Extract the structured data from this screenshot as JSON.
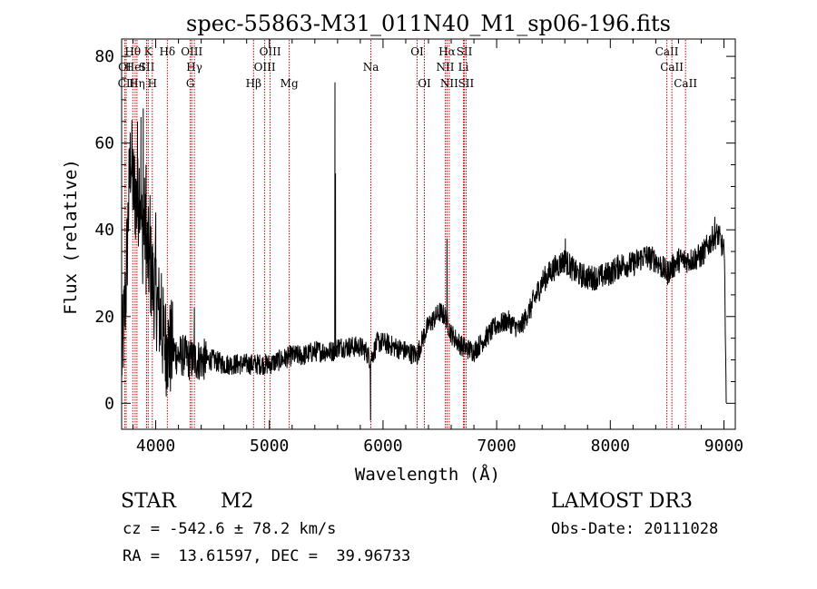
{
  "chart_data": {
    "type": "line",
    "title": "spec-55863-M31_011N40_M1_sp06-196.fits",
    "xlabel": "Wavelength (Å)",
    "ylabel": "Flux (relative)",
    "xlim": [
      3700,
      9100
    ],
    "ylim": [
      -6,
      84
    ],
    "xticks": [
      4000,
      5000,
      6000,
      7000,
      8000,
      9000
    ],
    "xtick_labels": [
      "4000",
      "5000",
      "6000",
      "7000",
      "8000",
      "9000"
    ],
    "yticks": [
      0,
      20,
      40,
      60,
      80
    ],
    "ytick_labels": [
      "0",
      "20",
      "40",
      "60",
      "80"
    ],
    "grid": false,
    "line_color": "#000000",
    "marker_color": "#cc0000",
    "anchors": [
      [
        3700,
        10
      ],
      [
        3720,
        18
      ],
      [
        3740,
        28
      ],
      [
        3760,
        45
      ],
      [
        3780,
        58
      ],
      [
        3800,
        50
      ],
      [
        3820,
        48
      ],
      [
        3840,
        45
      ],
      [
        3860,
        52
      ],
      [
        3880,
        38
      ],
      [
        3900,
        42
      ],
      [
        3920,
        35
      ],
      [
        3940,
        33
      ],
      [
        3960,
        30
      ],
      [
        3980,
        27
      ],
      [
        4000,
        25
      ],
      [
        4020,
        22
      ],
      [
        4040,
        20
      ],
      [
        4060,
        16
      ],
      [
        4080,
        14
      ],
      [
        4100,
        13
      ],
      [
        4150,
        12
      ],
      [
        4200,
        11
      ],
      [
        4250,
        11
      ],
      [
        4300,
        10
      ],
      [
        4350,
        10
      ],
      [
        4400,
        10
      ],
      [
        4500,
        10
      ],
      [
        4600,
        9
      ],
      [
        4700,
        9
      ],
      [
        4800,
        9
      ],
      [
        4900,
        9
      ],
      [
        5000,
        9
      ],
      [
        5100,
        10
      ],
      [
        5200,
        11
      ],
      [
        5300,
        11
      ],
      [
        5400,
        12
      ],
      [
        5500,
        12
      ],
      [
        5560,
        12
      ],
      [
        5600,
        13
      ],
      [
        5700,
        13
      ],
      [
        5800,
        13
      ],
      [
        5850,
        12
      ],
      [
        5890,
        10
      ],
      [
        5950,
        14
      ],
      [
        6000,
        14
      ],
      [
        6100,
        13
      ],
      [
        6200,
        12
      ],
      [
        6300,
        11
      ],
      [
        6350,
        15
      ],
      [
        6400,
        18
      ],
      [
        6500,
        21
      ],
      [
        6550,
        20
      ],
      [
        6600,
        16
      ],
      [
        6700,
        13
      ],
      [
        6800,
        12
      ],
      [
        6900,
        15
      ],
      [
        7000,
        18
      ],
      [
        7100,
        19
      ],
      [
        7200,
        17
      ],
      [
        7300,
        22
      ],
      [
        7400,
        28
      ],
      [
        7500,
        31
      ],
      [
        7600,
        33
      ],
      [
        7700,
        30
      ],
      [
        7800,
        29
      ],
      [
        7900,
        29
      ],
      [
        8000,
        30
      ],
      [
        8100,
        32
      ],
      [
        8200,
        32
      ],
      [
        8300,
        34
      ],
      [
        8400,
        33
      ],
      [
        8500,
        30
      ],
      [
        8600,
        33
      ],
      [
        8700,
        33
      ],
      [
        8800,
        34
      ],
      [
        8900,
        38
      ],
      [
        8950,
        39
      ],
      [
        9000,
        35
      ],
      [
        9010,
        25
      ],
      [
        9020,
        0
      ]
    ],
    "spikes": [
      [
        3840,
        65
      ],
      [
        3870,
        66
      ],
      [
        3890,
        68
      ],
      [
        3915,
        55
      ],
      [
        3950,
        48
      ],
      [
        4000,
        44
      ],
      [
        4050,
        30
      ],
      [
        4102,
        15
      ],
      [
        4340,
        22
      ],
      [
        5577,
        74
      ],
      [
        5582,
        53
      ],
      [
        5890,
        -4
      ],
      [
        6563,
        38
      ],
      [
        7605,
        38
      ],
      [
        8920,
        43
      ]
    ],
    "noise_amplitude": 2.5,
    "lines": [
      {
        "label": "OI",
        "x": 3727,
        "row": 1
      },
      {
        "label": "CII",
        "x": 3740,
        "row": 2
      },
      {
        "label": "Hθ",
        "x": 3798,
        "row": 0
      },
      {
        "label": "HeI",
        "x": 3819,
        "row": 1
      },
      {
        "label": "Hη",
        "x": 3835,
        "row": 2
      },
      {
        "label": "K",
        "x": 3934,
        "row": 0
      },
      {
        "label": "SII",
        "x": 3920,
        "row": 1
      },
      {
        "label": "H",
        "x": 3970,
        "row": 2
      },
      {
        "label": "Hδ",
        "x": 4102,
        "row": 0
      },
      {
        "label": "OIII",
        "x": 4317,
        "row": 0
      },
      {
        "label": "Hγ",
        "x": 4340,
        "row": 1
      },
      {
        "label": "G",
        "x": 4304,
        "row": 2
      },
      {
        "label": "Hβ",
        "x": 4861,
        "row": 2
      },
      {
        "label": "OIII",
        "x": 5007,
        "row": 0
      },
      {
        "label": "OIII",
        "x": 4959,
        "row": 1
      },
      {
        "label": "Mg",
        "x": 5175,
        "row": 2
      },
      {
        "label": "Na",
        "x": 5893,
        "row": 1
      },
      {
        "label": "OI",
        "x": 6300,
        "row": 0
      },
      {
        "label": "OI",
        "x": 6364,
        "row": 2
      },
      {
        "label": "Hα",
        "x": 6563,
        "row": 0
      },
      {
        "label": "NII",
        "x": 6548,
        "row": 1
      },
      {
        "label": "NII",
        "x": 6583,
        "row": 2
      },
      {
        "label": "SII",
        "x": 6716,
        "row": 0
      },
      {
        "label": "Li",
        "x": 6708,
        "row": 1
      },
      {
        "label": "SII",
        "x": 6731,
        "row": 2
      },
      {
        "label": "CaII",
        "x": 8498,
        "row": 0
      },
      {
        "label": "CaII",
        "x": 8542,
        "row": 1
      },
      {
        "label": "CaII",
        "x": 8662,
        "row": 2
      }
    ]
  },
  "info": {
    "class": "STAR",
    "subclass": "M2",
    "survey": "LAMOST DR3",
    "cz": "cz = -542.6 ± 78.2 km/s",
    "obs_date": "Obs-Date: 20111028",
    "coords": "RA =  13.61597, DEC =  39.96733"
  }
}
